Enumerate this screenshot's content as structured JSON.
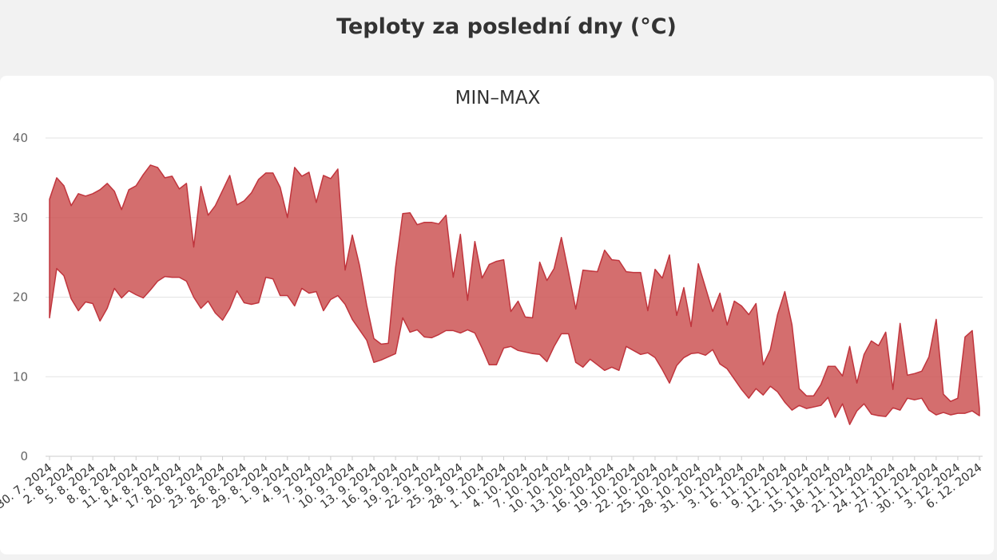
{
  "page": {
    "title": "Teploty za poslední dny (°C)"
  },
  "colors": {
    "area_fill": "#cc5555",
    "area_stroke": "#c0353d",
    "grid": "#e3e3e3",
    "axis": "#cccccc"
  },
  "chart_data": {
    "type": "area",
    "subtitle": "MIN–MAX",
    "ylim": [
      0,
      40
    ],
    "yticks": [
      0,
      10,
      20,
      30,
      40
    ],
    "grid": true,
    "x_start": "30. 7. 2024",
    "x_end": "6. 12. 2024",
    "xtick_labels": [
      "30. 7. 2024",
      "2. 8. 2024",
      "5. 8. 2024",
      "8. 8. 2024",
      "11. 8. 2024",
      "14. 8. 2024",
      "17. 8. 2024",
      "20. 8. 2024",
      "23. 8. 2024",
      "26. 8. 2024",
      "29. 8. 2024",
      "1. 9. 2024",
      "4. 9. 2024",
      "7. 9. 2024",
      "10. 9. 2024",
      "13. 9. 2024",
      "16. 9. 2024",
      "19. 9. 2024",
      "22. 9. 2024",
      "25. 9. 2024",
      "28. 9. 2024",
      "1. 10. 2024",
      "4. 10. 2024",
      "7. 10. 2024",
      "10. 10. 2024",
      "13. 10. 2024",
      "16. 10. 2024",
      "19. 10. 2024",
      "22. 10. 2024",
      "25. 10. 2024",
      "28. 10. 2024",
      "31. 10. 2024",
      "3. 11. 2024",
      "6. 11. 2024",
      "9. 11. 2024",
      "12. 11. 2024",
      "15. 11. 2024",
      "18. 11. 2024",
      "21. 11. 2024",
      "24. 11. 2024",
      "27. 11. 2024",
      "30. 11. 2024",
      "3. 12. 2024",
      "6. 12. 2024"
    ],
    "max": [
      32.3,
      35.0,
      34.0,
      31.5,
      33.0,
      32.7,
      33.0,
      33.5,
      34.3,
      33.3,
      31.0,
      33.5,
      34.0,
      35.4,
      36.6,
      36.3,
      35.0,
      35.2,
      33.6,
      34.3,
      26.3,
      33.9,
      30.3,
      31.5,
      33.4,
      35.3,
      31.6,
      32.1,
      33.1,
      34.8,
      35.6,
      35.6,
      33.8,
      30.0,
      36.3,
      35.2,
      35.7,
      31.9,
      35.3,
      34.9,
      36.1,
      23.4,
      27.8,
      24.0,
      19.0,
      14.8,
      14.1,
      14.2,
      23.7,
      30.5,
      30.6,
      29.1,
      29.4,
      29.4,
      29.2,
      30.3,
      22.5,
      27.9,
      19.6,
      27.0,
      22.4,
      24.1,
      24.5,
      24.7,
      18.2,
      19.5,
      17.5,
      17.4,
      24.4,
      22.1,
      23.6,
      27.5,
      23.1,
      18.5,
      23.4,
      23.3,
      23.2,
      25.9,
      24.7,
      24.6,
      23.2,
      23.1,
      23.1,
      18.3,
      23.5,
      22.4,
      25.3,
      17.7,
      21.2,
      16.3,
      24.2,
      21.2,
      18.2,
      20.5,
      16.5,
      19.5,
      18.9,
      17.8,
      19.2,
      11.5,
      13.4,
      17.8,
      20.7,
      16.5,
      8.5,
      7.6,
      7.6,
      9.0,
      11.3,
      11.3,
      10.1,
      13.8,
      9.2,
      12.8,
      14.5,
      13.9,
      15.6,
      8.4,
      16.7,
      10.2,
      10.4,
      10.7,
      12.5,
      17.2,
      7.8,
      6.9,
      7.3,
      15.0,
      15.8,
      6.0
    ],
    "min": [
      17.4,
      23.6,
      22.7,
      19.8,
      18.3,
      19.4,
      19.2,
      17.0,
      18.6,
      21.1,
      19.9,
      20.8,
      20.3,
      19.9,
      20.9,
      22.0,
      22.6,
      22.5,
      22.5,
      22.0,
      20.0,
      18.6,
      19.5,
      18.0,
      17.1,
      18.6,
      20.8,
      19.3,
      19.1,
      19.3,
      22.5,
      22.3,
      20.2,
      20.2,
      18.9,
      21.1,
      20.5,
      20.7,
      18.3,
      19.7,
      20.2,
      19.1,
      17.2,
      15.9,
      14.6,
      11.8,
      12.1,
      12.5,
      12.9,
      17.4,
      15.6,
      15.9,
      15.0,
      14.9,
      15.3,
      15.8,
      15.8,
      15.5,
      15.9,
      15.5,
      13.6,
      11.5,
      11.5,
      13.6,
      13.8,
      13.3,
      13.1,
      12.9,
      12.8,
      11.9,
      13.8,
      15.4,
      15.4,
      11.8,
      11.2,
      12.2,
      11.5,
      10.8,
      11.2,
      10.8,
      13.8,
      13.3,
      12.8,
      13.0,
      12.4,
      10.9,
      9.2,
      11.4,
      12.4,
      12.9,
      13.0,
      12.7,
      13.4,
      11.6,
      11.0,
      9.7,
      8.4,
      7.3,
      8.5,
      7.7,
      8.8,
      8.1,
      6.8,
      5.8,
      6.4,
      6.0,
      6.2,
      6.4,
      7.4,
      4.9,
      6.6,
      4.0,
      5.7,
      6.6,
      5.3,
      5.1,
      5.0,
      6.1,
      5.8,
      7.3,
      7.1,
      7.3,
      5.8,
      5.2,
      5.5,
      5.2,
      5.4,
      5.4,
      5.7,
      5.1
    ]
  }
}
